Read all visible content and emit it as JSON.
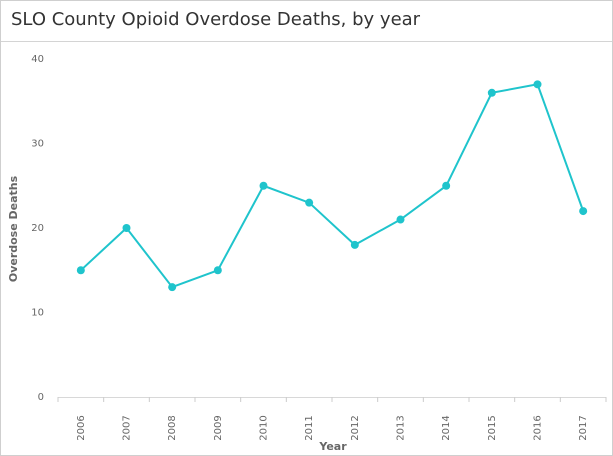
{
  "chart_data": {
    "type": "line",
    "title": "SLO County Opioid Overdose Deaths, by year",
    "xlabel": "Year",
    "ylabel": "Overdose Deaths",
    "categories": [
      "2006",
      "2007",
      "2008",
      "2009",
      "2010",
      "2011",
      "2012",
      "2013",
      "2014",
      "2015",
      "2016",
      "2017"
    ],
    "series": [
      {
        "values": [
          15,
          20,
          13,
          15,
          25,
          23,
          18,
          21,
          25,
          36,
          37,
          22
        ]
      }
    ],
    "yticks": [
      0,
      10,
      20,
      30,
      40
    ],
    "ylim": [
      0,
      40
    ],
    "grid": false,
    "legend": "none",
    "line_color": "#1fc4cc"
  }
}
